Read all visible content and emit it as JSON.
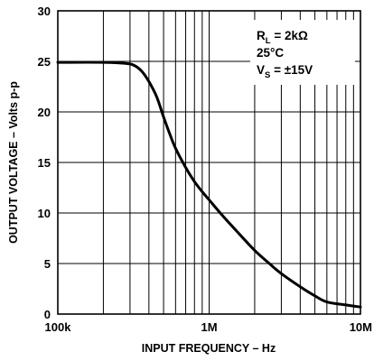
{
  "chart_data": {
    "type": "line",
    "xlabel": "INPUT FREQUENCY – Hz",
    "ylabel": "OUTPUT VOLTAGE – Volts p-p",
    "x_scale": "log",
    "xlim": [
      100000,
      10000000
    ],
    "ylim": [
      0,
      30
    ],
    "x_ticks": [
      100000,
      1000000,
      10000000
    ],
    "x_tick_labels": [
      "100k",
      "1M",
      "10M"
    ],
    "y_ticks": [
      0,
      5,
      10,
      15,
      20,
      25,
      30
    ],
    "y_tick_labels": [
      "0",
      "5",
      "10",
      "15",
      "20",
      "25",
      "30"
    ],
    "grid": true,
    "annotation": {
      "rl_main": "R",
      "rl_sub": "L",
      "rl_value": " = 2kΩ",
      "temp": "25°C",
      "vs_main": "V",
      "vs_sub": "S",
      "vs_value": " = ±15V"
    },
    "series": [
      {
        "x": [
          100000,
          200000,
          280000,
          320000,
          360000,
          400000,
          450000,
          500000,
          550000,
          600000,
          700000,
          800000,
          900000,
          1000000,
          1200000,
          1500000,
          2000000,
          2500000,
          3000000,
          4000000,
          5000000,
          6000000,
          8000000,
          10000000
        ],
        "values": [
          24.9,
          24.9,
          24.8,
          24.6,
          24.0,
          23.0,
          21.5,
          19.5,
          17.8,
          16.4,
          14.5,
          13.1,
          12.1,
          11.3,
          9.9,
          8.3,
          6.3,
          5.0,
          4.0,
          2.7,
          1.8,
          1.2,
          0.9,
          0.7
        ]
      }
    ]
  }
}
